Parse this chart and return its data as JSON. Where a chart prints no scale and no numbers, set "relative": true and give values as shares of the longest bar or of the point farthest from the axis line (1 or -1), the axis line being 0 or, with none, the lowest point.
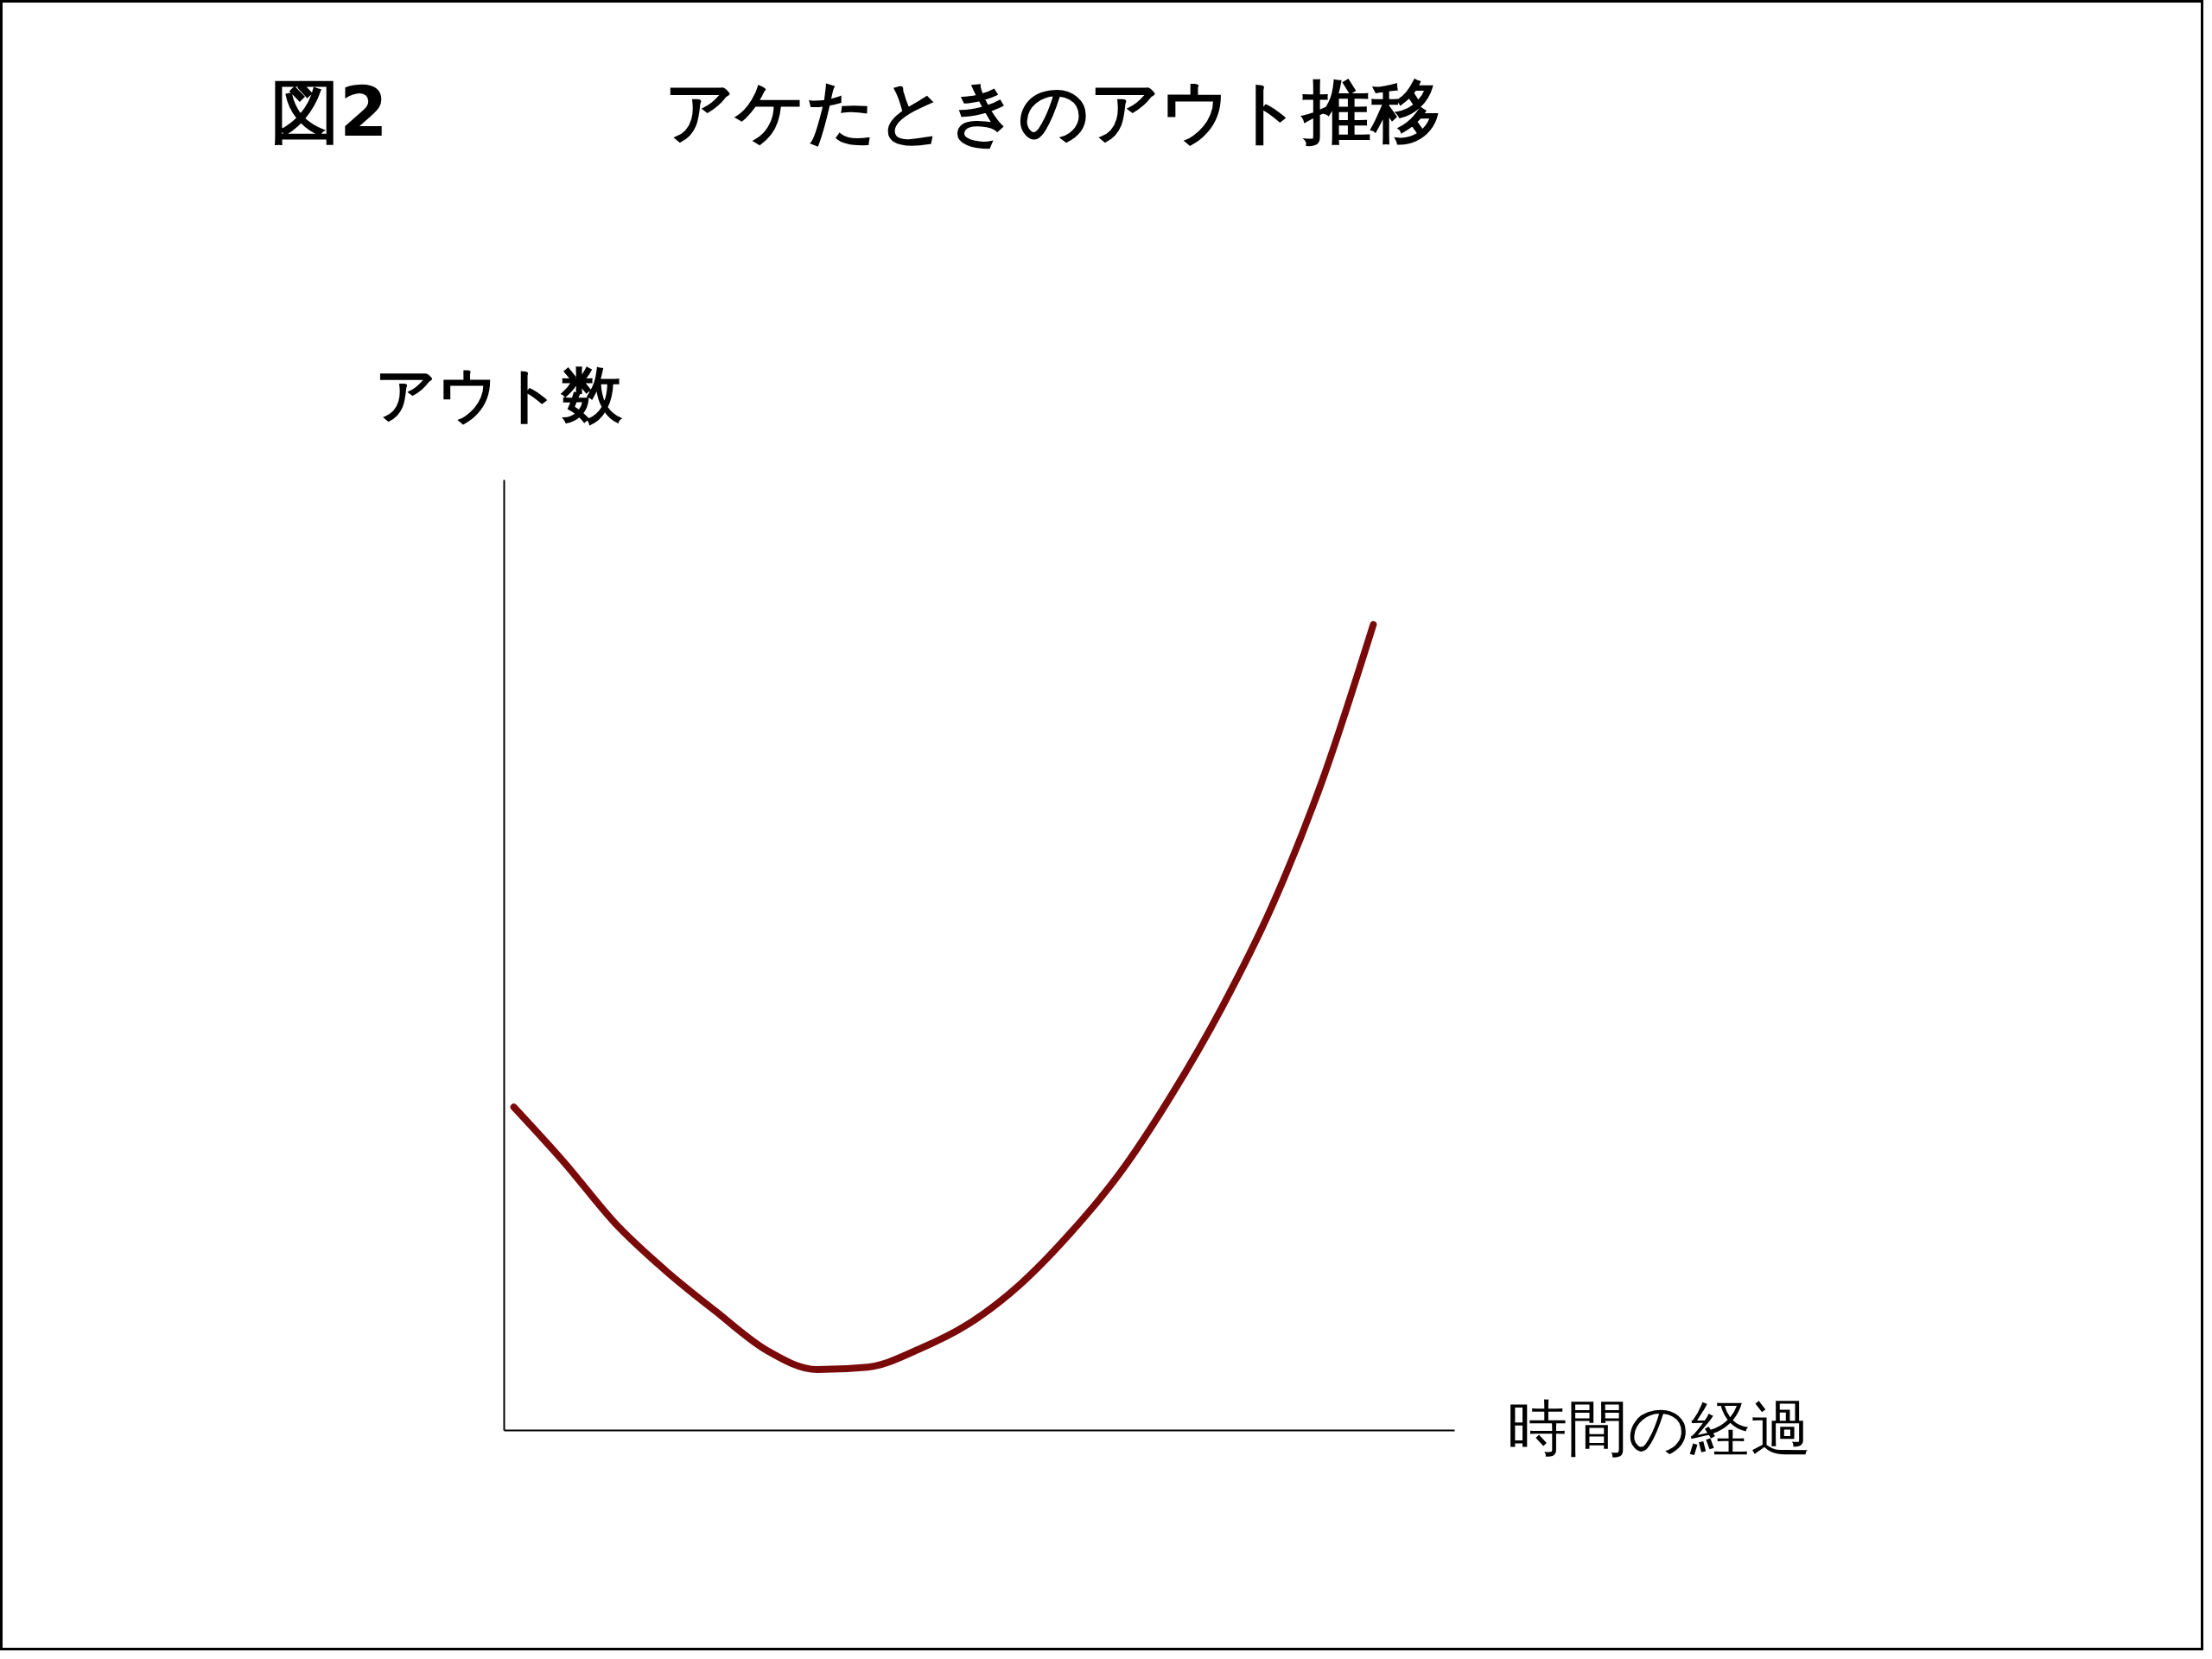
{
  "chart_data": {
    "type": "line",
    "title": "図2　　　　アケたときのアウト推移",
    "xlabel": "時間の経過",
    "ylabel": "アウト数",
    "relative": true,
    "categories": [
      null,
      null,
      null,
      null,
      null,
      null,
      null,
      null,
      null,
      null,
      null,
      null,
      null,
      null,
      null,
      null,
      null,
      null
    ],
    "series": [
      {
        "color": "#7a0a0a",
        "values": [
          0.401,
          0.332,
          0.257,
          0.198,
          0.147,
          0.099,
          0.075,
          0.078,
          0.1,
          0.132,
          0.18,
          0.244,
          0.32,
          0.415,
          0.524,
          0.651,
          0.808,
          1.0
        ]
      }
    ]
  }
}
